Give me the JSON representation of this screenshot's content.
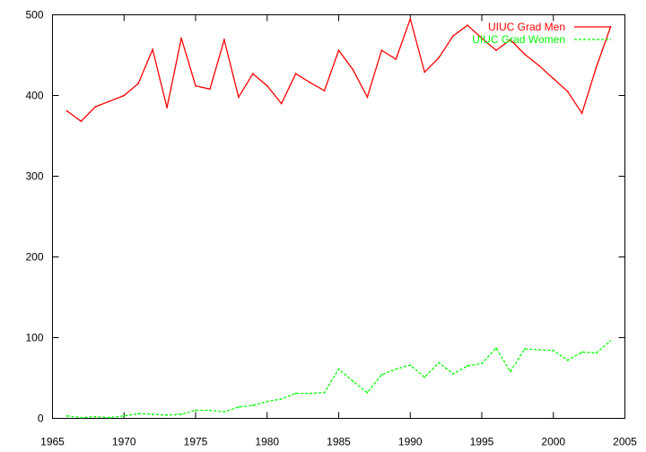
{
  "chart_data": {
    "type": "line",
    "title": "",
    "xlabel": "",
    "ylabel": "",
    "xlim": [
      1965,
      2005
    ],
    "ylim": [
      0,
      500
    ],
    "xticks": [
      1965,
      1970,
      1975,
      1980,
      1985,
      1990,
      1995,
      2000,
      2005
    ],
    "yticks": [
      0,
      100,
      200,
      300,
      400,
      500
    ],
    "grid": false,
    "legend_position": "top-right",
    "x": [
      1966,
      1967,
      1968,
      1969,
      1970,
      1971,
      1972,
      1973,
      1974,
      1975,
      1976,
      1977,
      1978,
      1979,
      1980,
      1981,
      1982,
      1983,
      1984,
      1985,
      1986,
      1987,
      1988,
      1989,
      1990,
      1991,
      1992,
      1993,
      1994,
      1995,
      1996,
      1997,
      1998,
      1999,
      2000,
      2001,
      2002,
      2003,
      2004
    ],
    "series": [
      {
        "name": "UIUC Grad Men",
        "color": "#ff0000",
        "style": "solid",
        "values": [
          381,
          368,
          386,
          393,
          400,
          415,
          457,
          385,
          471,
          412,
          408,
          469,
          398,
          427,
          412,
          390,
          427,
          416,
          406,
          456,
          432,
          398,
          456,
          445,
          495,
          429,
          447,
          474,
          487,
          471,
          456,
          469,
          451,
          437,
          421,
          405,
          378,
          435,
          485
        ]
      },
      {
        "name": "UIUC Grad Women",
        "color": "#00ff00",
        "style": "dashed",
        "values": [
          3,
          1,
          2,
          1,
          3,
          6,
          5,
          4,
          5,
          10,
          10,
          8,
          14,
          16,
          21,
          24,
          31,
          31,
          32,
          61,
          46,
          32,
          54,
          61,
          66,
          51,
          69,
          55,
          65,
          68,
          87,
          58,
          86,
          85,
          84,
          72,
          82,
          81,
          96
        ]
      }
    ]
  }
}
